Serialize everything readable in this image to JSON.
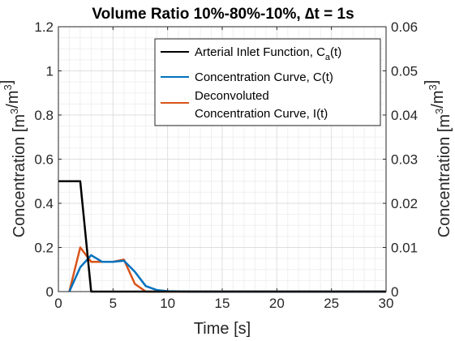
{
  "chart_data": {
    "type": "line",
    "title": "Volume Ratio 10%-80%-10%, ∆t = 1s",
    "xlabel": "Time [s]",
    "ylabel_left": "Concentration [m³/m³]",
    "ylabel_right": "Concentration [m³/m³]",
    "xlim": [
      0,
      30
    ],
    "ylim_left": [
      0,
      1.2
    ],
    "ylim_right": [
      0,
      0.06
    ],
    "xticks": [
      "0",
      "5",
      "10",
      "15",
      "20",
      "25",
      "30"
    ],
    "yticks_left": [
      "0",
      "0.2",
      "0.4",
      "0.6",
      "0.8",
      "1",
      "1.2"
    ],
    "yticks_right": [
      "0",
      "0.01",
      "0.02",
      "0.03",
      "0.04",
      "0.05",
      "0.06"
    ],
    "grid": true,
    "legend_position": "top-right",
    "series": [
      {
        "name": "Arterial Inlet Function, Ca(t)",
        "legend_main": "Arterial Inlet Function, C",
        "legend_sub": "a",
        "legend_tail": "(t)",
        "axis": "left",
        "color": "#000000",
        "x": [
          0,
          2,
          3,
          30
        ],
        "y": [
          0.5,
          0.5,
          0,
          0
        ]
      },
      {
        "name": "Concentration Curve, C(t)",
        "legend_lines": [
          "Concentration Curve, C(t)"
        ],
        "axis": "left",
        "color": "#0072BD",
        "x": [
          1,
          2,
          3,
          4,
          5,
          6,
          7,
          8,
          9,
          10,
          11,
          12,
          30
        ],
        "y": [
          0,
          0.11,
          0.165,
          0.135,
          0.135,
          0.14,
          0.09,
          0.025,
          0.007,
          0.002,
          0.001,
          0,
          0
        ]
      },
      {
        "name": "Deconvoluted Concentration Curve, I(t)",
        "legend_lines": [
          "Deconvoluted",
          "Concentration Curve, I(t)"
        ],
        "axis": "left",
        "color": "#D95319",
        "x": [
          1,
          2,
          3,
          4,
          5,
          6,
          7,
          8,
          30
        ],
        "y": [
          0,
          0.2,
          0.135,
          0.135,
          0.135,
          0.145,
          0.035,
          0,
          0
        ]
      }
    ]
  }
}
